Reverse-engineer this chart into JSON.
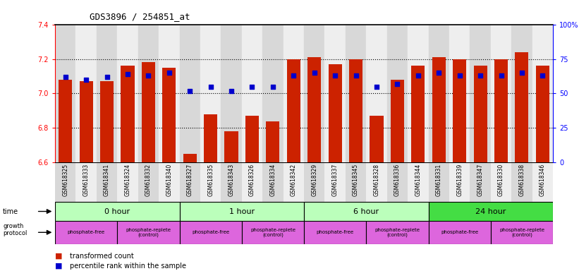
{
  "title": "GDS3896 / 254851_at",
  "samples": [
    "GSM618325",
    "GSM618333",
    "GSM618341",
    "GSM618324",
    "GSM618332",
    "GSM618340",
    "GSM618327",
    "GSM618335",
    "GSM618343",
    "GSM618326",
    "GSM618334",
    "GSM618342",
    "GSM618329",
    "GSM618337",
    "GSM618345",
    "GSM618328",
    "GSM618336",
    "GSM618344",
    "GSM618331",
    "GSM618339",
    "GSM618347",
    "GSM618330",
    "GSM618338",
    "GSM618346"
  ],
  "bar_values": [
    7.08,
    7.07,
    7.07,
    7.16,
    7.18,
    7.15,
    6.65,
    6.88,
    6.78,
    6.87,
    6.84,
    7.2,
    7.21,
    7.17,
    7.2,
    6.87,
    7.08,
    7.16,
    7.21,
    7.2,
    7.16,
    7.2,
    7.24,
    7.16
  ],
  "percentile_values": [
    62,
    60,
    62,
    64,
    63,
    65,
    52,
    55,
    52,
    55,
    55,
    63,
    65,
    63,
    63,
    55,
    57,
    63,
    65,
    63,
    63,
    63,
    65,
    63
  ],
  "ylim_left": [
    6.6,
    7.4
  ],
  "ylim_right": [
    0,
    100
  ],
  "yticks_left": [
    6.6,
    6.8,
    7.0,
    7.2,
    7.4
  ],
  "ytick_labels_left": [
    "6.6",
    "6.8",
    "7.0",
    "7.2",
    "7.4"
  ],
  "yticks_right": [
    0,
    25,
    50,
    75,
    100
  ],
  "ytick_labels_right": [
    "0",
    "25",
    "50",
    "75",
    "100%"
  ],
  "bar_color": "#cc2200",
  "percentile_color": "#0000cc",
  "time_groups": [
    {
      "label": "0 hour",
      "start": 0,
      "end": 6,
      "color": "#bbffbb"
    },
    {
      "label": "1 hour",
      "start": 6,
      "end": 12,
      "color": "#bbffbb"
    },
    {
      "label": "6 hour",
      "start": 12,
      "end": 18,
      "color": "#bbffbb"
    },
    {
      "label": "24 hour",
      "start": 18,
      "end": 24,
      "color": "#44dd44"
    }
  ],
  "protocol_groups": [
    {
      "label": "phosphate-free",
      "start": 0,
      "end": 3,
      "color": "#dd66dd"
    },
    {
      "label": "phosphate-replete\n(control)",
      "start": 3,
      "end": 6,
      "color": "#dd66dd"
    },
    {
      "label": "phosphate-free",
      "start": 6,
      "end": 9,
      "color": "#dd66dd"
    },
    {
      "label": "phosphate-replete\n(control)",
      "start": 9,
      "end": 12,
      "color": "#dd66dd"
    },
    {
      "label": "phosphate-free",
      "start": 12,
      "end": 15,
      "color": "#dd66dd"
    },
    {
      "label": "phosphate-replete\n(control)",
      "start": 15,
      "end": 18,
      "color": "#dd66dd"
    },
    {
      "label": "phosphate-free",
      "start": 18,
      "end": 21,
      "color": "#dd66dd"
    },
    {
      "label": "phosphate-replete\n(control)",
      "start": 21,
      "end": 24,
      "color": "#dd66dd"
    }
  ],
  "legend_bar_label": "transformed count",
  "legend_dot_label": "percentile rank within the sample",
  "bar_width": 0.65,
  "col_bg_even": "#d8d8d8",
  "col_bg_odd": "#eeeeee"
}
